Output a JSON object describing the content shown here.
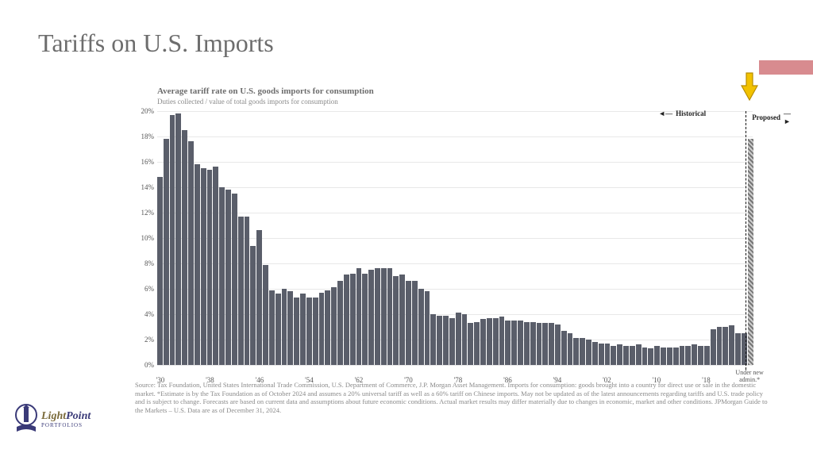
{
  "title": "Tariffs on U.S. Imports",
  "chart": {
    "type": "bar",
    "title": "Average tariff rate on U.S. goods imports for consumption",
    "subtitle": "Duties collected / value of total goods imports for consumption",
    "ylim": [
      0,
      20
    ],
    "ytick_step": 2,
    "y_tick_suffix": "%",
    "bar_color": "#5a5e6a",
    "proposed_pattern": "hatched",
    "grid_color": "#e8e8e8",
    "background_color": "#ffffff",
    "start_year": 1930,
    "x_ticks": [
      "'30",
      "'38",
      "'46",
      "'54",
      "'62",
      "'70",
      "'78",
      "'86",
      "'94",
      "'02",
      "'10",
      "'18"
    ],
    "x_tick_interval": 8,
    "final_x_label": "Under new admin.*",
    "legend": {
      "historical": "Historical",
      "proposed": "Proposed"
    },
    "values": [
      14.8,
      17.8,
      19.7,
      19.8,
      18.5,
      17.6,
      15.8,
      15.5,
      15.4,
      15.6,
      14.0,
      13.8,
      13.5,
      11.7,
      11.7,
      9.4,
      10.6,
      7.9,
      5.9,
      5.6,
      6.0,
      5.8,
      5.3,
      5.6,
      5.3,
      5.3,
      5.7,
      5.9,
      6.1,
      6.6,
      7.1,
      7.2,
      7.6,
      7.2,
      7.5,
      7.6,
      7.6,
      7.6,
      7.0,
      7.1,
      6.6,
      6.6,
      6.0,
      5.8,
      4.0,
      3.9,
      3.9,
      3.7,
      4.1,
      4.0,
      3.3,
      3.4,
      3.6,
      3.7,
      3.7,
      3.8,
      3.5,
      3.5,
      3.5,
      3.4,
      3.4,
      3.3,
      3.3,
      3.3,
      3.2,
      2.7,
      2.5,
      2.1,
      2.1,
      2.0,
      1.8,
      1.7,
      1.7,
      1.5,
      1.6,
      1.5,
      1.5,
      1.6,
      1.4,
      1.3,
      1.5,
      1.4,
      1.4,
      1.4,
      1.5,
      1.5,
      1.6,
      1.5,
      1.5,
      2.8,
      3.0,
      3.0,
      3.1,
      2.5,
      2.5
    ],
    "proposed_value": 17.8
  },
  "footnote": "Source: Tax Foundation, United States International Trade Commission, U.S. Department of Commerce, J.P. Morgan Asset Management. Imports for consumption: goods brought into a country for direct use or sale in the domestic market. *Estimate is by the Tax Foundation as of October 2024 and assumes a 20% universal tariff as well as a 60% tariff on Chinese imports. May not be updated as of the latest announcements regarding tariffs and U.S. trade policy and is subject to change. Forecasts are based on current data and assumptions about future economic conditions. Actual market results may differ materially due to changes in economic, market and other conditions.  JPMorgan Guide to the Markets – U.S. Data are as of December 31, 2024.",
  "logo": {
    "light": "Light",
    "point": "Point",
    "portfolios": "PORTFOLIOS"
  },
  "accent_color": "#d88b8f",
  "arrow_color": "#f2c200"
}
